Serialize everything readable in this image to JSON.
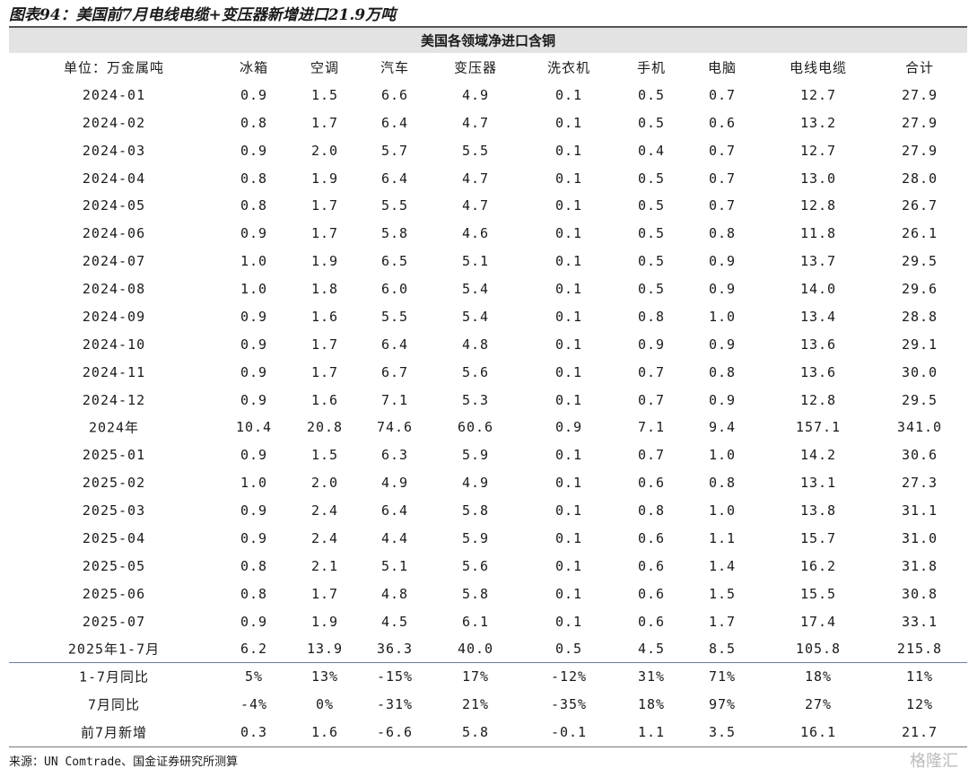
{
  "title": "图表94：美国前7月电线电缆+变压器新增进口21.9万吨",
  "table": {
    "group_header": "美国各领域净进口含铜",
    "columns": [
      "单位：万金属吨",
      "冰箱",
      "空调",
      "汽车",
      "变压器",
      "洗衣机",
      "手机",
      "电脑",
      "电线电缆",
      "合计"
    ],
    "rows": [
      [
        "2024-01",
        "0.9",
        "1.5",
        "6.6",
        "4.9",
        "0.1",
        "0.5",
        "0.7",
        "12.7",
        "27.9"
      ],
      [
        "2024-02",
        "0.8",
        "1.7",
        "6.4",
        "4.7",
        "0.1",
        "0.5",
        "0.6",
        "13.2",
        "27.9"
      ],
      [
        "2024-03",
        "0.9",
        "2.0",
        "5.7",
        "5.5",
        "0.1",
        "0.4",
        "0.7",
        "12.7",
        "27.9"
      ],
      [
        "2024-04",
        "0.8",
        "1.9",
        "6.4",
        "4.7",
        "0.1",
        "0.5",
        "0.7",
        "13.0",
        "28.0"
      ],
      [
        "2024-05",
        "0.8",
        "1.7",
        "5.5",
        "4.7",
        "0.1",
        "0.5",
        "0.7",
        "12.8",
        "26.7"
      ],
      [
        "2024-06",
        "0.9",
        "1.7",
        "5.8",
        "4.6",
        "0.1",
        "0.5",
        "0.8",
        "11.8",
        "26.1"
      ],
      [
        "2024-07",
        "1.0",
        "1.9",
        "6.5",
        "5.1",
        "0.1",
        "0.5",
        "0.9",
        "13.7",
        "29.5"
      ],
      [
        "2024-08",
        "1.0",
        "1.8",
        "6.0",
        "5.4",
        "0.1",
        "0.5",
        "0.9",
        "14.0",
        "29.6"
      ],
      [
        "2024-09",
        "0.9",
        "1.6",
        "5.5",
        "5.4",
        "0.1",
        "0.8",
        "1.0",
        "13.4",
        "28.8"
      ],
      [
        "2024-10",
        "0.9",
        "1.7",
        "6.4",
        "4.8",
        "0.1",
        "0.9",
        "0.9",
        "13.6",
        "29.1"
      ],
      [
        "2024-11",
        "0.9",
        "1.7",
        "6.7",
        "5.6",
        "0.1",
        "0.7",
        "0.8",
        "13.6",
        "30.0"
      ],
      [
        "2024-12",
        "0.9",
        "1.6",
        "7.1",
        "5.3",
        "0.1",
        "0.7",
        "0.9",
        "12.8",
        "29.5"
      ],
      [
        "2024年",
        "10.4",
        "20.8",
        "74.6",
        "60.6",
        "0.9",
        "7.1",
        "9.4",
        "157.1",
        "341.0"
      ],
      [
        "2025-01",
        "0.9",
        "1.5",
        "6.3",
        "5.9",
        "0.1",
        "0.7",
        "1.0",
        "14.2",
        "30.6"
      ],
      [
        "2025-02",
        "1.0",
        "2.0",
        "4.9",
        "4.9",
        "0.1",
        "0.6",
        "0.8",
        "13.1",
        "27.3"
      ],
      [
        "2025-03",
        "0.9",
        "2.4",
        "6.4",
        "5.8",
        "0.1",
        "0.8",
        "1.0",
        "13.8",
        "31.1"
      ],
      [
        "2025-04",
        "0.9",
        "2.4",
        "4.4",
        "5.9",
        "0.1",
        "0.6",
        "1.1",
        "15.7",
        "31.0"
      ],
      [
        "2025-05",
        "0.8",
        "2.1",
        "5.1",
        "5.6",
        "0.1",
        "0.6",
        "1.4",
        "16.2",
        "31.8"
      ],
      [
        "2025-06",
        "0.8",
        "1.7",
        "4.8",
        "5.8",
        "0.1",
        "0.6",
        "1.5",
        "15.5",
        "30.8"
      ],
      [
        "2025-07",
        "0.9",
        "1.9",
        "4.5",
        "6.1",
        "0.1",
        "0.6",
        "1.7",
        "17.4",
        "33.1"
      ],
      [
        "2025年1-7月",
        "6.2",
        "13.9",
        "36.3",
        "40.0",
        "0.5",
        "4.5",
        "8.5",
        "105.8",
        "215.8"
      ],
      [
        "1-7月同比",
        "5%",
        "13%",
        "-15%",
        "17%",
        "-12%",
        "31%",
        "71%",
        "18%",
        "11%"
      ],
      [
        "7月同比",
        "-4%",
        "0%",
        "-31%",
        "21%",
        "-35%",
        "18%",
        "97%",
        "27%",
        "12%"
      ],
      [
        "前7月新增",
        "0.3",
        "1.6",
        "-6.6",
        "5.8",
        "-0.1",
        "1.1",
        "3.5",
        "16.1",
        "21.7"
      ]
    ]
  },
  "source": "来源：UN Comtrade、国金证券研究所测算",
  "watermark": "格隆汇"
}
